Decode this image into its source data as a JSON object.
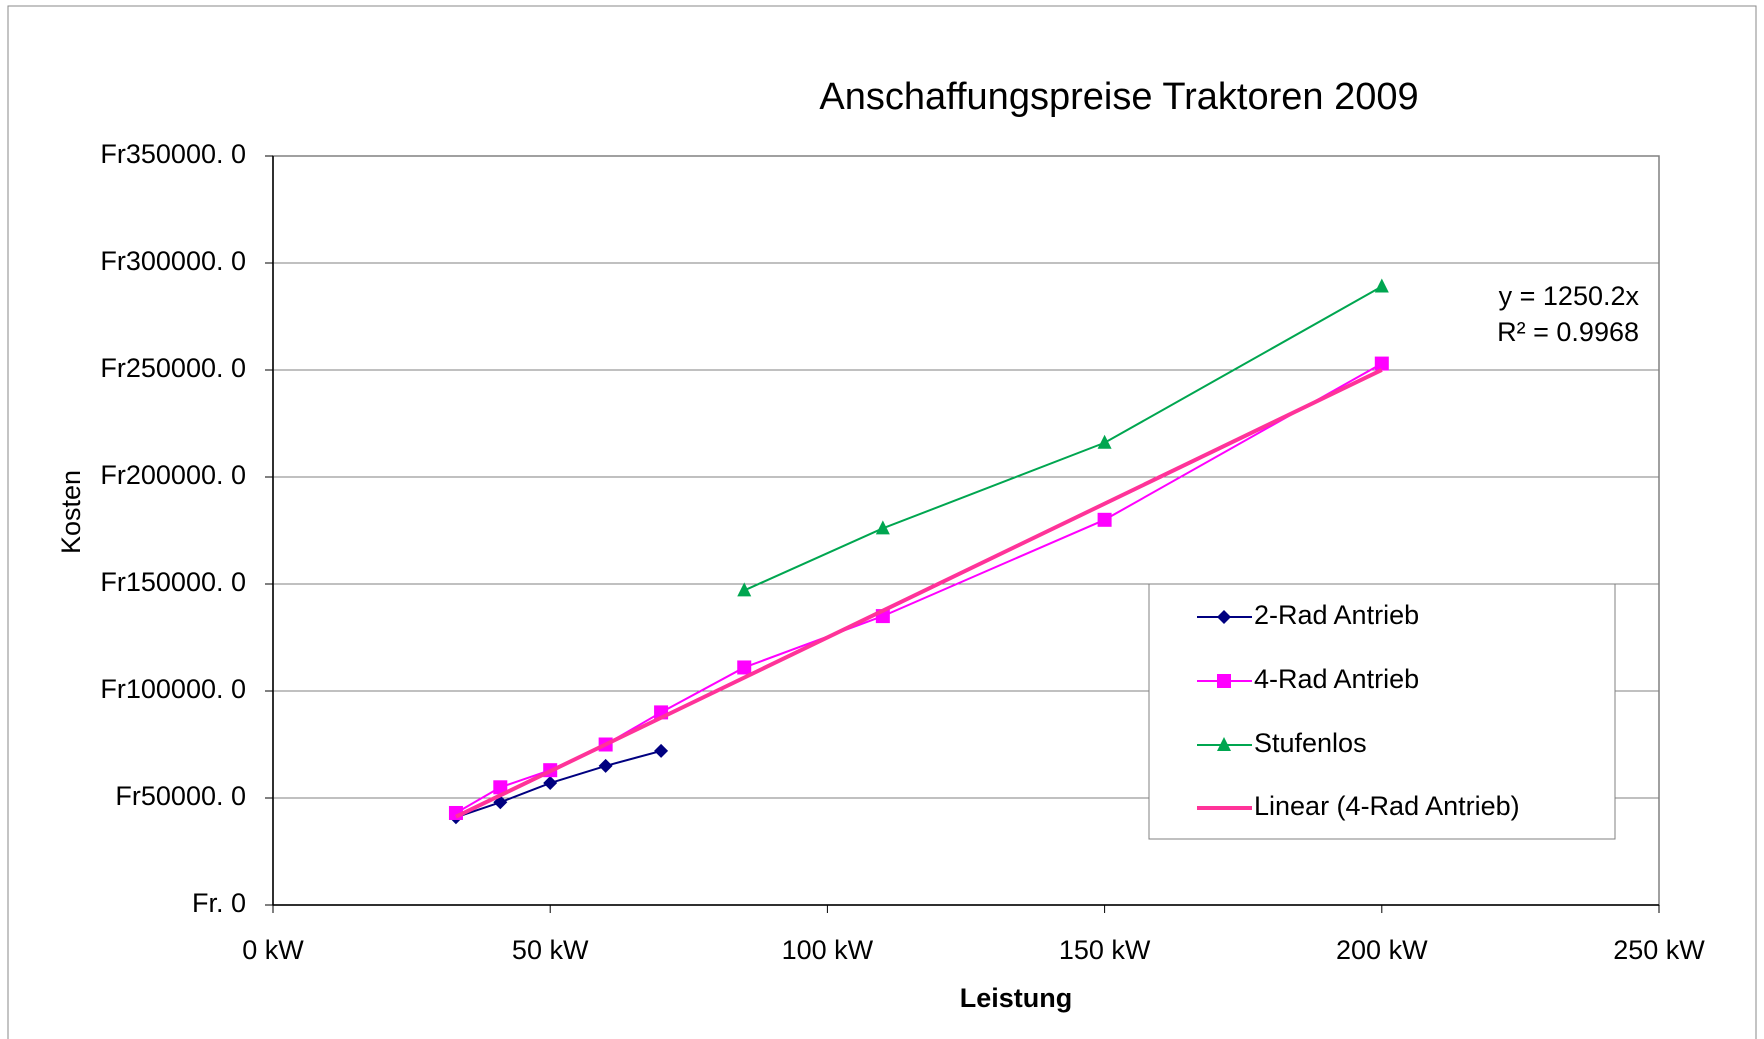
{
  "chart_data": {
    "type": "line",
    "title": "Anschaffungspreise Traktoren 2009",
    "xlabel": "Leistung",
    "ylabel": "Kosten",
    "xlim": [
      0,
      250
    ],
    "xticks": [
      {
        "value": 0,
        "label": "0 kW"
      },
      {
        "value": 50,
        "label": "50 kW"
      },
      {
        "value": 100,
        "label": "100 kW"
      },
      {
        "value": 150,
        "label": "150 kW"
      },
      {
        "value": 200,
        "label": "200 kW"
      },
      {
        "value": 250,
        "label": "250 kW"
      }
    ],
    "ylim": [
      0,
      350000
    ],
    "yticks": [
      {
        "value": 0,
        "label": "Fr. 0"
      },
      {
        "value": 50000,
        "label": "Fr50000. 0"
      },
      {
        "value": 100000,
        "label": "Fr100000. 0"
      },
      {
        "value": 150000,
        "label": "Fr150000. 0"
      },
      {
        "value": 200000,
        "label": "Fr200000. 0"
      },
      {
        "value": 250000,
        "label": "Fr250000. 0"
      },
      {
        "value": 300000,
        "label": "Fr300000. 0"
      },
      {
        "value": 350000,
        "label": "Fr350000. 0"
      }
    ],
    "grid": true,
    "series": [
      {
        "name": "2-Rad Antrieb",
        "color": "#000080",
        "marker": "diamond",
        "x": [
          33,
          41,
          50,
          60,
          70
        ],
        "values": [
          41000,
          48000,
          57000,
          65000,
          72000
        ]
      },
      {
        "name": "4-Rad Antrieb",
        "color": "#ff00ff",
        "marker": "square",
        "x": [
          33,
          41,
          50,
          60,
          70,
          85,
          110,
          150,
          200
        ],
        "values": [
          43000,
          55000,
          63000,
          75000,
          90000,
          111000,
          135000,
          180000,
          253000
        ]
      },
      {
        "name": "Stufenlos",
        "color": "#00a650",
        "marker": "triangle",
        "x": [
          85,
          110,
          150,
          200
        ],
        "values": [
          147000,
          176000,
          216000,
          289000
        ]
      }
    ],
    "trendline": {
      "name": "Linear (4-Rad Antrieb)",
      "color": "#ff3399",
      "slope": 1250.2,
      "x": [
        33,
        200
      ],
      "equation": "y = 1250.2x",
      "r2": "R² = 0.9968"
    }
  }
}
